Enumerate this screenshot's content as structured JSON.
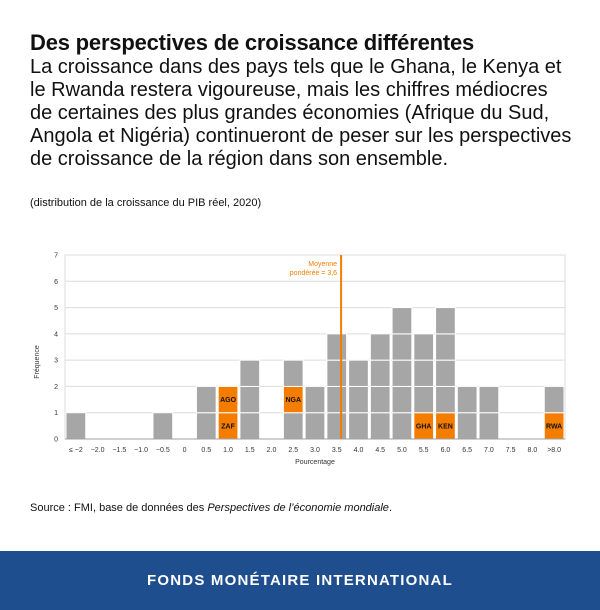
{
  "header": {
    "title": "Des perspectives de croissance différentes",
    "subtitle": "La croissance dans des pays tels que le Ghana, le Kenya et le Rwanda restera vigoureuse, mais les chiffres médiocres de certaines des plus grandes économies (Afrique du Sud, Angola et Nigéria) continueront de peser sur les perspectives de croissance de la région dans son ensemble.",
    "note": "(distribution de la croissance du PIB réel, 2020)"
  },
  "chart_data": {
    "type": "bar",
    "xlabel": "Pourcentage",
    "ylabel": "Fréquence",
    "ylim": [
      0,
      7
    ],
    "yticks": [
      0,
      1,
      2,
      3,
      4,
      5,
      6,
      7
    ],
    "grid": true,
    "categories": [
      "≤−2",
      "−2.0",
      "−1.5",
      "−1.0",
      "−0.5",
      "0",
      "0.5",
      "1.0",
      "1.5",
      "2.0",
      "2.5",
      "3.0",
      "3.5",
      "4.0",
      "4.5",
      "5.0",
      "5.5",
      "6.0",
      "6.5",
      "7.0",
      "7.5",
      "8.0",
      ">8.0"
    ],
    "xtick_labels": [
      "≤ −2",
      "−2.0",
      "−1.5",
      "−1.0",
      "−0.5",
      "0",
      "0.5",
      "1.0",
      "1.5",
      "2.0",
      "2.5",
      "3.0",
      "3.5",
      "4.0",
      "4.5",
      "5.0",
      "5.5",
      "6.0",
      "6.5",
      "7.0",
      "7.5",
      "8.0",
      ">8.0"
    ],
    "values": [
      1,
      0,
      0,
      0,
      1,
      0,
      2,
      2,
      3,
      0,
      3,
      2,
      4,
      3,
      4,
      5,
      4,
      5,
      2,
      2,
      0,
      0,
      2
    ],
    "highlights": [
      {
        "category": "1.0",
        "level": 2,
        "label": "AGO"
      },
      {
        "category": "1.0",
        "level": 1,
        "label": "ZAF"
      },
      {
        "category": "2.5",
        "level": 2,
        "label": "NGA"
      },
      {
        "category": "5.5",
        "level": 1,
        "label": "GHA"
      },
      {
        "category": "6.0",
        "level": 1,
        "label": "KEN"
      },
      {
        "category": ">8.0",
        "level": 1,
        "label": "RWA"
      }
    ],
    "reference_line": {
      "value": 3.6,
      "label_line1": "Moyenne",
      "label_line2": "pondérée = 3,6"
    },
    "colors": {
      "bar": "#a6a6a6",
      "highlight": "#f47d00",
      "line": "#f47d00",
      "grid": "#dcdcdc",
      "axis": "#a0a0a0"
    }
  },
  "source": {
    "prefix": "Source : FMI, base de données des ",
    "title": "Perspectives de l’économie mondiale",
    "suffix": "."
  },
  "footer": {
    "text": "FONDS MONÉTAIRE INTERNATIONAL"
  }
}
